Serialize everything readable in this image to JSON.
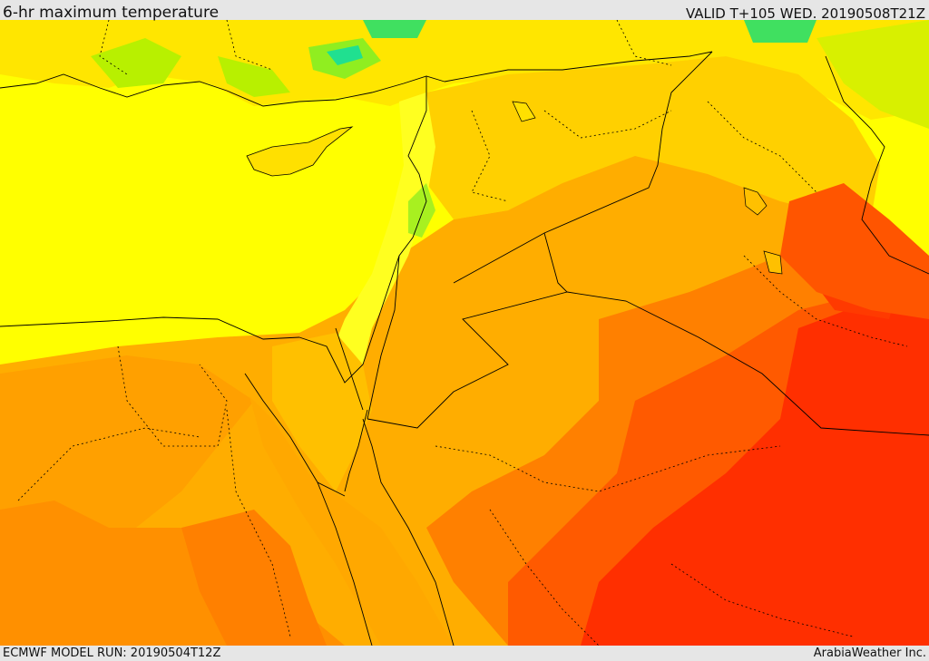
{
  "header": {
    "title": "6-hr maximum temperature",
    "valid": "VALID T+105 WED. 20190508T21Z"
  },
  "footer": {
    "model_run": "ECMWF MODEL RUN: 20190504T12Z",
    "credit": "ArabiaWeather Inc."
  },
  "map": {
    "colors": {
      "sea_yellow": "#ffff00",
      "light_orange": "#ffd200",
      "orange": "#ffad00",
      "dark_orange": "#ff8000",
      "red_orange": "#ff5500",
      "red": "#ff2a00",
      "green": "#a8f000",
      "cyan": "#00e0a0",
      "border": "#000000"
    }
  }
}
